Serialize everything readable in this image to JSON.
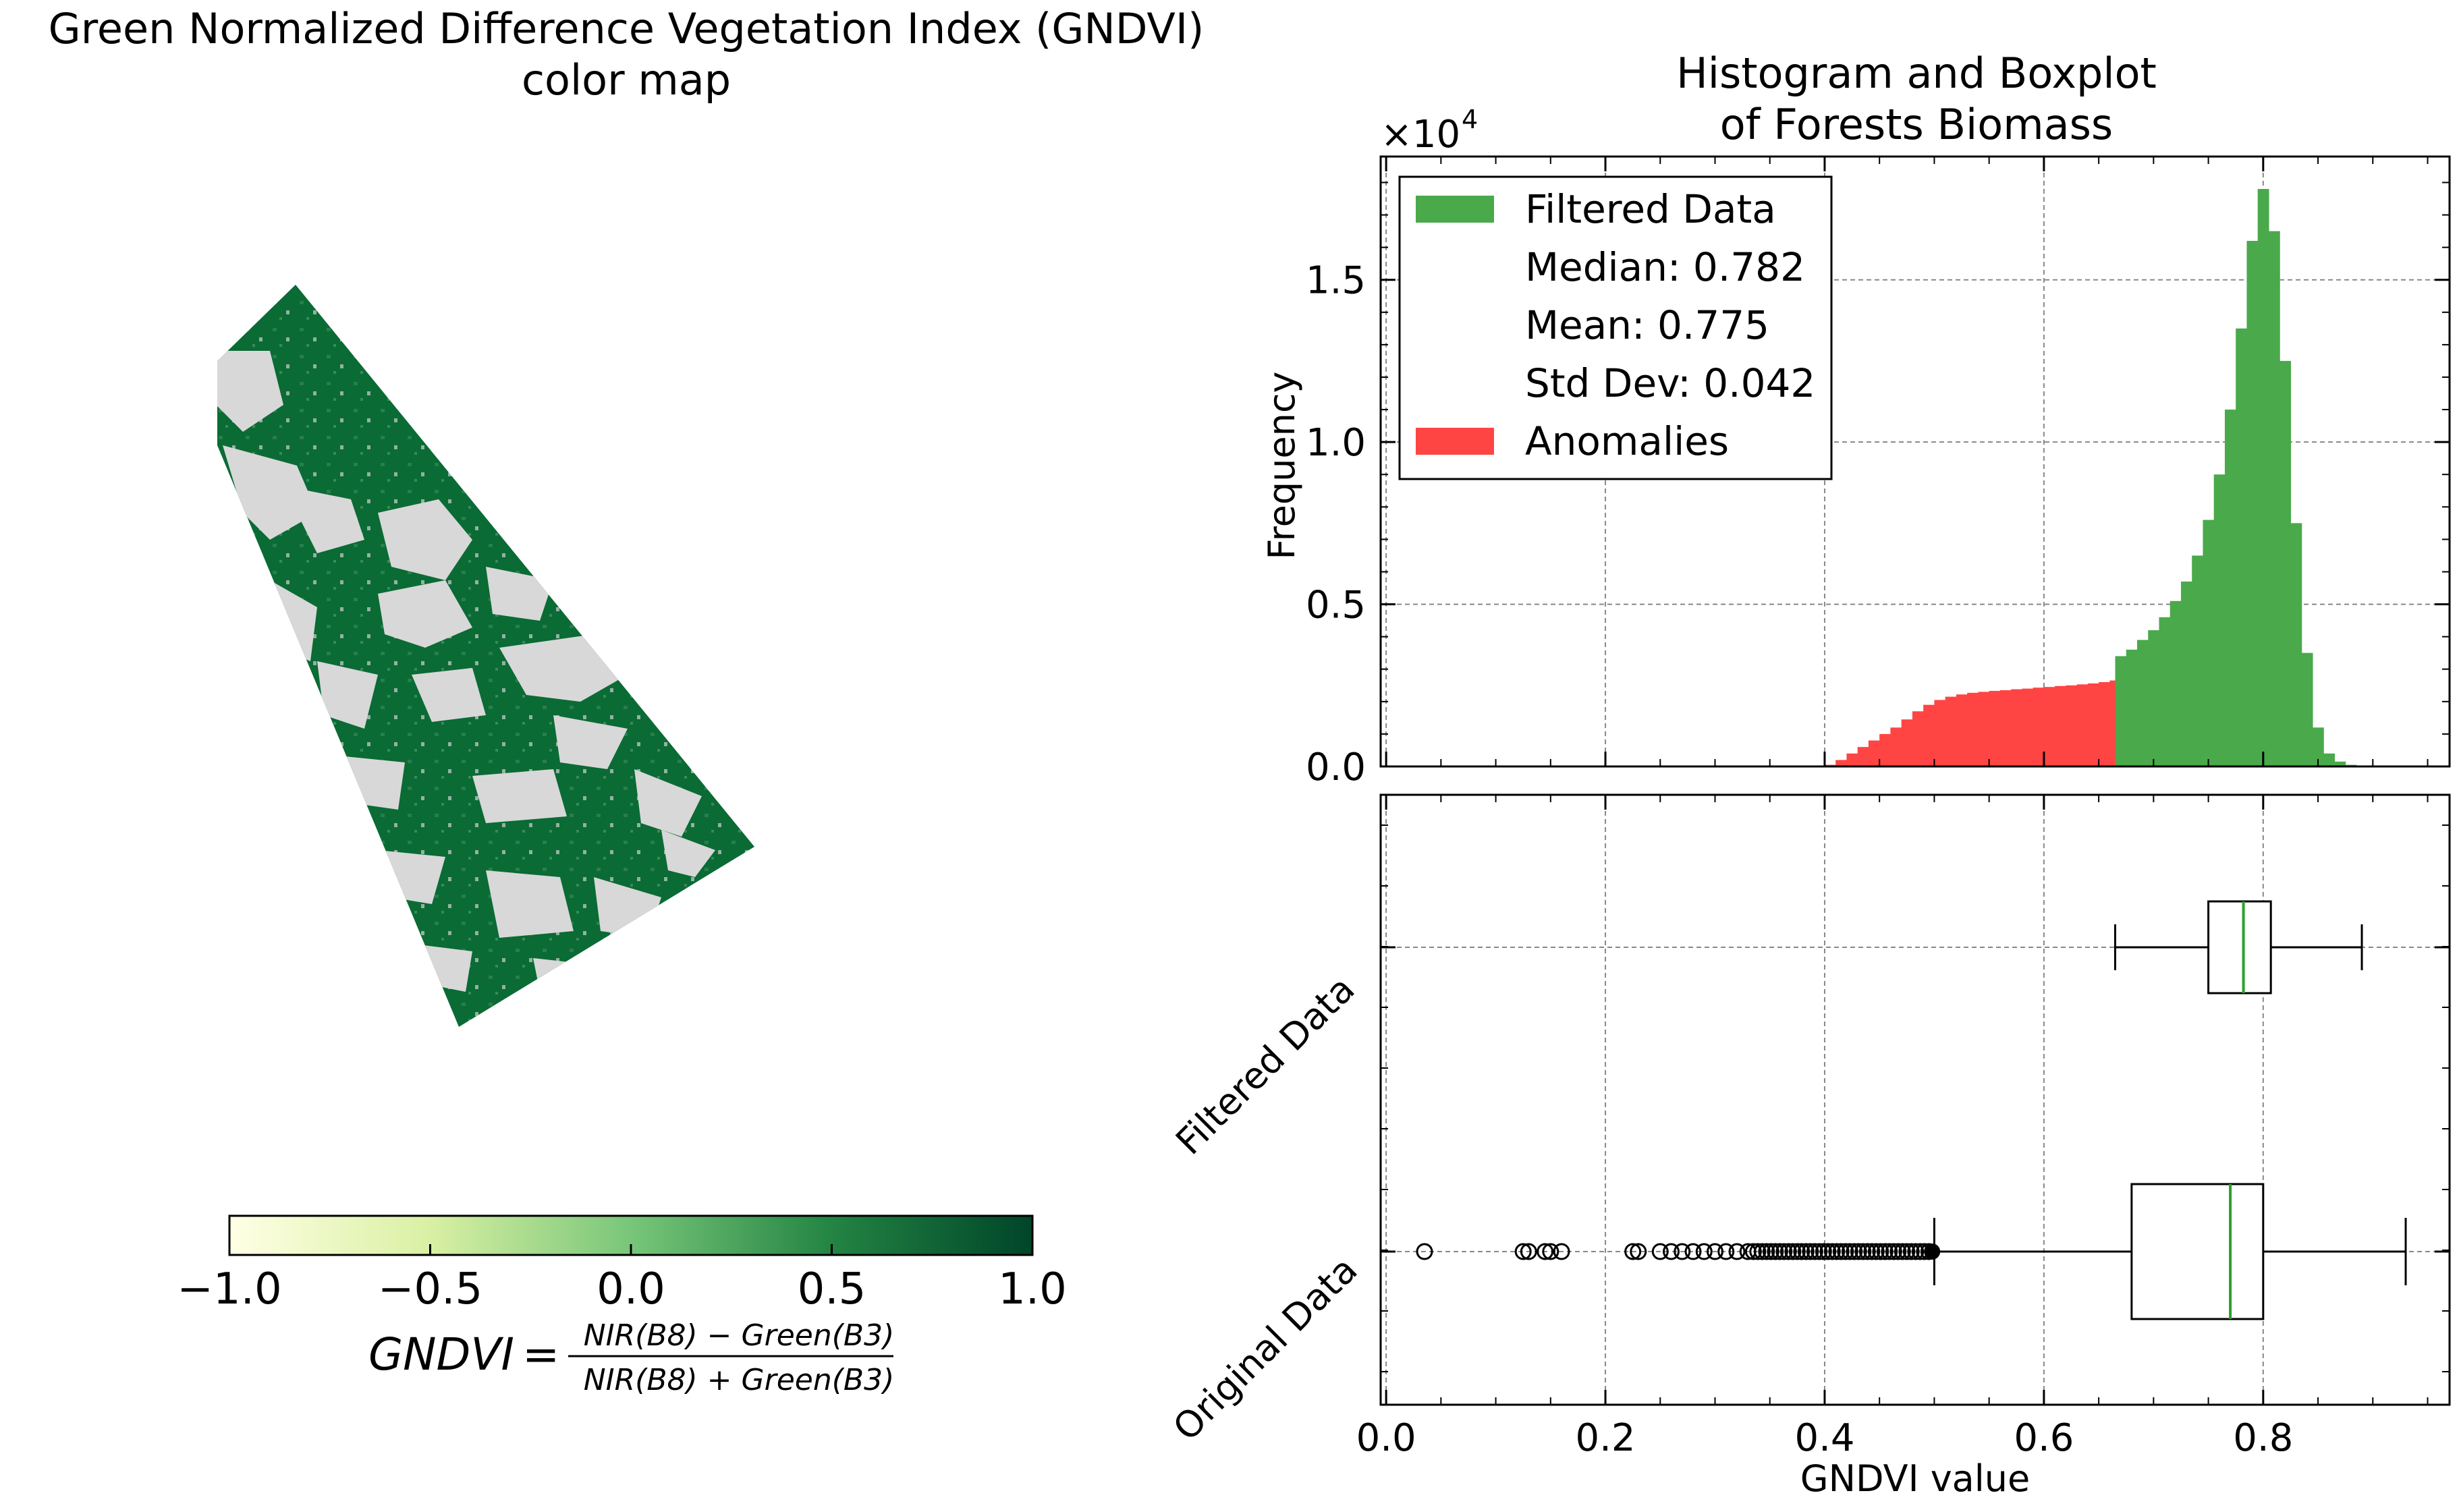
{
  "left_panel": {
    "title_line1": "Green Normalized Difference Vegetation Index (GNDVI)",
    "title_line2": "color map",
    "colorbar": {
      "colormap": "Greens",
      "colors": [
        "#ffffe5",
        "#d9f0a3",
        "#78c679",
        "#238443",
        "#004529"
      ],
      "vmin": -1.0,
      "vmax": 1.0,
      "ticks": [
        "−1.0",
        "−0.5",
        "0.0",
        "0.5",
        "1.0"
      ]
    },
    "formula": {
      "lhs": "GNDVI",
      "equals": "=",
      "numerator": "NIR(B8) − Green(B3)",
      "denominator": "NIR(B8) + Green(B3)"
    },
    "map_colors": {
      "forest": "#0a6b35",
      "nonforest": "#d6d6d6"
    }
  },
  "chart_data": [
    {
      "type": "bar",
      "title": "Histogram and Boxplot\nof Forests Biomass",
      "title_line1": "Histogram and Boxplot",
      "title_line2": "of Forests Biomass",
      "ylabel": "Frequency",
      "y_multiplier_label": "×10",
      "y_multiplier_exp": "4",
      "xlim": [
        -0.005,
        0.97
      ],
      "ylim": [
        0,
        18800
      ],
      "yticks": [
        "0.0",
        "0.5",
        "1.0",
        "1.5"
      ],
      "grid": true,
      "legend_position": "top-left",
      "legend": {
        "filtered": "Filtered Data",
        "median": "Median: 0.782",
        "mean": "Mean: 0.775",
        "std": "Std Dev: 0.042",
        "anomalies": "Anomalies"
      },
      "series": [
        {
          "name": "Anomalies",
          "color": "#ff4444",
          "x": [
            0.4,
            0.41,
            0.42,
            0.43,
            0.44,
            0.45,
            0.46,
            0.47,
            0.48,
            0.49,
            0.5,
            0.51,
            0.52,
            0.53,
            0.54,
            0.55,
            0.56,
            0.57,
            0.58,
            0.59,
            0.6,
            0.61,
            0.62,
            0.63,
            0.64,
            0.65,
            0.66
          ],
          "values": [
            50,
            200,
            400,
            600,
            800,
            1000,
            1200,
            1450,
            1700,
            1900,
            2050,
            2150,
            2220,
            2270,
            2300,
            2330,
            2350,
            2380,
            2400,
            2430,
            2450,
            2480,
            2500,
            2530,
            2560,
            2600,
            2650
          ]
        },
        {
          "name": "Filtered Data",
          "color": "#4aa94a",
          "x": [
            0.665,
            0.675,
            0.685,
            0.695,
            0.705,
            0.715,
            0.725,
            0.735,
            0.745,
            0.755,
            0.765,
            0.775,
            0.785,
            0.795,
            0.805,
            0.815,
            0.825,
            0.835,
            0.845,
            0.855,
            0.865,
            0.875
          ],
          "values": [
            3400,
            3600,
            3900,
            4200,
            4600,
            5100,
            5700,
            6500,
            7600,
            9000,
            11000,
            13500,
            16200,
            17800,
            16500,
            12500,
            7500,
            3500,
            1200,
            400,
            150,
            50
          ]
        }
      ]
    },
    {
      "type": "boxplot",
      "xlabel": "GNDVI value",
      "xlim": [
        -0.005,
        0.97
      ],
      "xticks": [
        "0.0",
        "0.2",
        "0.4",
        "0.6",
        "0.8"
      ],
      "categories": [
        "Filtered Data",
        "Original Data"
      ],
      "median_color": "#2ca02c",
      "boxes": [
        {
          "name": "Filtered Data",
          "whisker_low": 0.665,
          "q1": 0.75,
          "median": 0.782,
          "q3": 0.807,
          "whisker_high": 0.89
        },
        {
          "name": "Original Data",
          "whisker_low": 0.5,
          "q1": 0.68,
          "median": 0.77,
          "q3": 0.8,
          "whisker_high": 0.93,
          "outliers": [
            0.035,
            0.125,
            0.13,
            0.145,
            0.15,
            0.16,
            0.225,
            0.23,
            0.25,
            0.26,
            0.27,
            0.28,
            0.29,
            0.3,
            0.31,
            0.32,
            0.33
          ]
        }
      ]
    }
  ]
}
